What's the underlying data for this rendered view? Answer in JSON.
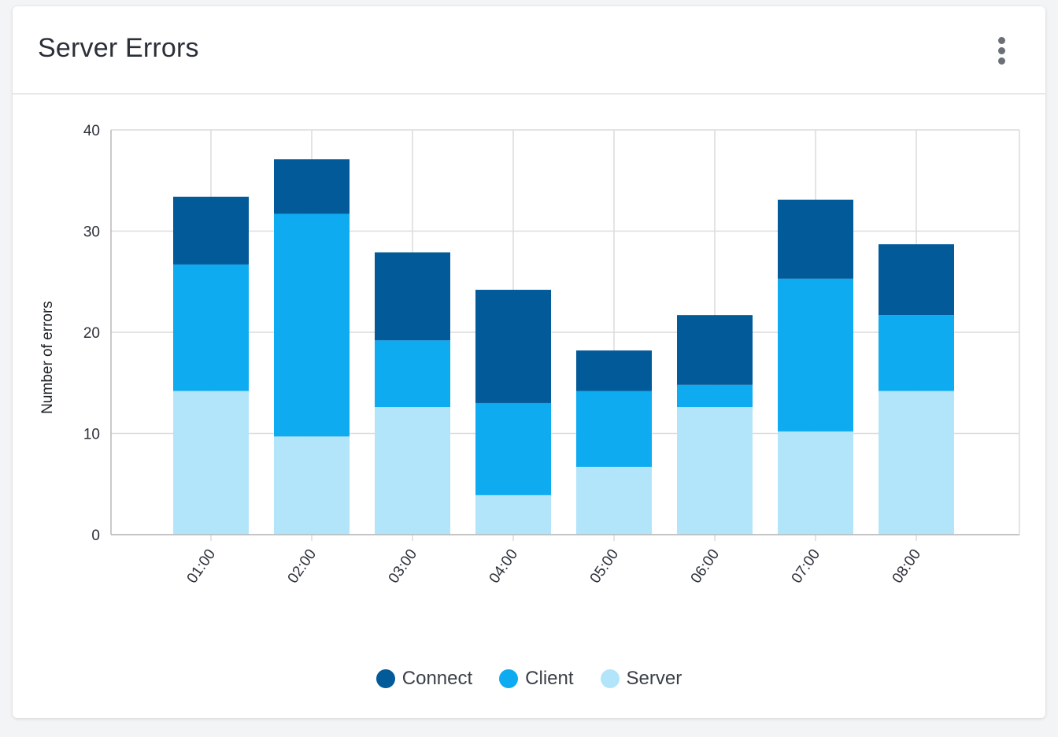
{
  "card": {
    "title": "Server Errors",
    "menu_icon": "more-vertical-icon"
  },
  "chart_data": {
    "type": "bar",
    "stacked": true,
    "categories": [
      "01:00",
      "02:00",
      "03:00",
      "04:00",
      "05:00",
      "06:00",
      "07:00",
      "08:00"
    ],
    "series": [
      {
        "name": "Server",
        "color": "#b3e5fa",
        "values": [
          14.2,
          9.7,
          12.6,
          3.9,
          6.7,
          12.6,
          10.2,
          14.2
        ]
      },
      {
        "name": "Client",
        "color": "#0eabf0",
        "values": [
          12.5,
          22.0,
          6.6,
          9.1,
          7.5,
          2.2,
          15.1,
          7.5
        ]
      },
      {
        "name": "Connect",
        "color": "#035a99",
        "values": [
          6.7,
          5.4,
          8.7,
          11.2,
          4.0,
          6.9,
          7.8,
          7.0
        ]
      }
    ],
    "xlabel": "",
    "ylabel": "Number of errors",
    "ylim": [
      0,
      40
    ],
    "yticks": [
      "0",
      "10",
      "20",
      "30",
      "40"
    ],
    "ytick_values": [
      0,
      10,
      20,
      30,
      40
    ],
    "grid": true,
    "legend_placement": "bottom-center",
    "legend_order": [
      "Connect",
      "Client",
      "Server"
    ]
  }
}
